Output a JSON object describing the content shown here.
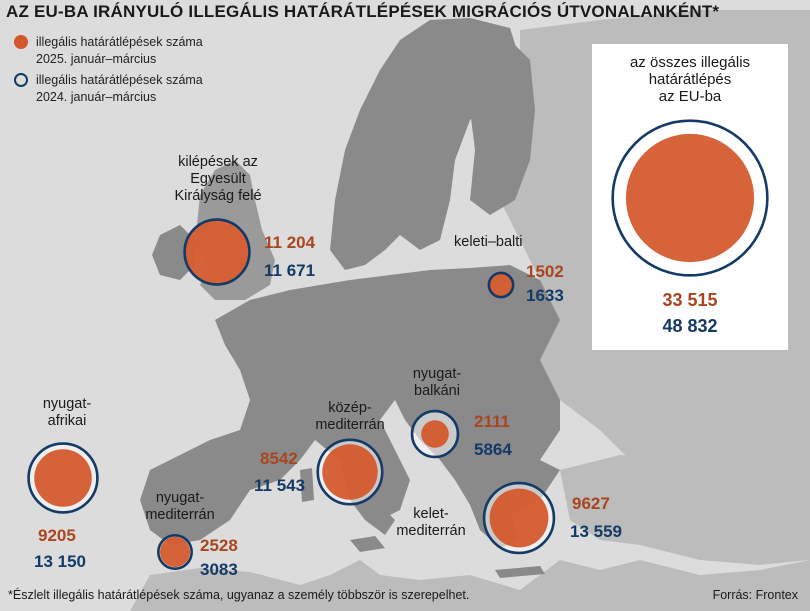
{
  "title": "AZ EU-BA IRÁNYULÓ ILLEGÁLIS HATÁRÁTLÉPÉSEK MIGRÁCIÓS ÚTVONALANKÉNT*",
  "legend": {
    "items": [
      {
        "symbol": "filled-circle",
        "color": "#d4562a",
        "line1": "illegális határátlépések száma",
        "line2": "2025. január–március"
      },
      {
        "symbol": "ring",
        "color": "#143a66",
        "line1": "illegális határátlépések száma",
        "line2": "2024. január–március"
      }
    ]
  },
  "colors": {
    "value_2025": "#a9461f",
    "value_2024": "#143a66",
    "circle_fill": "#d4562a",
    "ring": "#143a66",
    "land_eu": "#8a8a8a",
    "land_other": "#bcbcbc",
    "sea": "#dcdcdc"
  },
  "routes": [
    {
      "id": "uk",
      "name_lines": [
        "kilépések az",
        "Egyesült",
        "Királyság felé"
      ],
      "value_2025": "11 204",
      "value_2024": "11 671",
      "v2025": 11204,
      "v2024": 11671
    },
    {
      "id": "east-baltic",
      "name_lines": [
        "keleti–balti"
      ],
      "value_2025": "1502",
      "value_2024": "1633",
      "v2025": 1502,
      "v2024": 1633
    },
    {
      "id": "west-african",
      "name_lines": [
        "nyugat-",
        "afrikai"
      ],
      "value_2025": "9205",
      "value_2024": "13 150",
      "v2025": 9205,
      "v2024": 13150
    },
    {
      "id": "central-med",
      "name_lines": [
        "közép-",
        "mediterrán"
      ],
      "value_2025": "8542",
      "value_2024": "11 543",
      "v2025": 8542,
      "v2024": 11543
    },
    {
      "id": "west-balkan",
      "name_lines": [
        "nyugat-",
        "balkáni"
      ],
      "value_2025": "2111",
      "value_2024": "5864",
      "v2025": 2111,
      "v2024": 5864
    },
    {
      "id": "west-med",
      "name_lines": [
        "nyugat-",
        "mediterrán"
      ],
      "value_2025": "2528",
      "value_2024": "3083",
      "v2025": 2528,
      "v2024": 3083
    },
    {
      "id": "east-med",
      "name_lines": [
        "kelet-",
        "mediterrán"
      ],
      "value_2025": "9627",
      "value_2024": "13 559",
      "v2025": 9627,
      "v2024": 13559
    }
  ],
  "total": {
    "label_lines": [
      "az összes illegális",
      "határátlépés",
      "az EU-ba"
    ],
    "value_2025": "33 515",
    "value_2024": "48 832",
    "v2025": 33515,
    "v2024": 48832
  },
  "footnote": "*Észlelt illegális határátlépések száma, ugyanaz a személy többször is szerepelhet.",
  "source": "Forrás: Frontex"
}
